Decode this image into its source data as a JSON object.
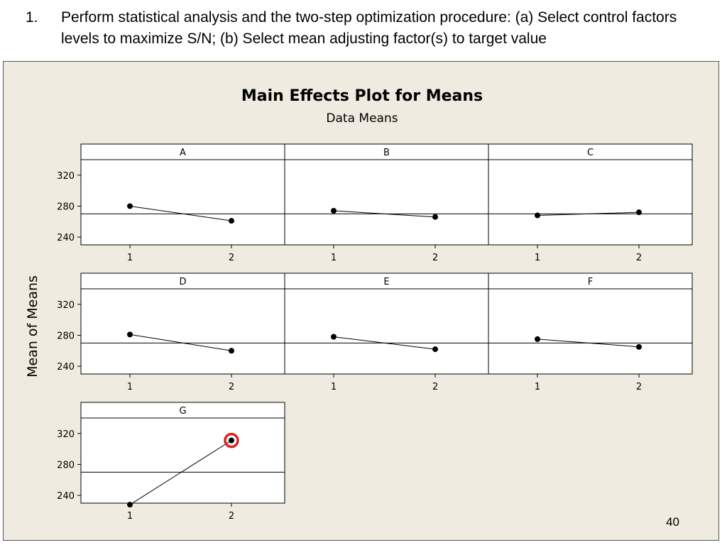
{
  "slide": {
    "step_number": "1.",
    "step_text": "Perform statistical analysis and the two-step optimization procedure: (a) Select control factors levels to maximize S/N; (b) Select mean adjusting factor(s) to target value",
    "page_number": "40"
  },
  "colors": {
    "panel_bg": "#efebe0",
    "plot_bg": "#ffffff",
    "highlight": "#e02020",
    "line": "#000000"
  },
  "chart_data": {
    "type": "line",
    "title": "Main Effects Plot for Means",
    "subtitle": "Data Means",
    "ylabel": "Mean of Means",
    "ylim": [
      230,
      340
    ],
    "yticks": [
      240,
      280,
      320
    ],
    "grand_mean": 270,
    "x_levels": [
      "1",
      "2"
    ],
    "factors": [
      {
        "name": "A",
        "values": [
          280,
          261
        ]
      },
      {
        "name": "B",
        "values": [
          274,
          266
        ]
      },
      {
        "name": "C",
        "values": [
          268,
          272
        ]
      },
      {
        "name": "D",
        "values": [
          281,
          260
        ]
      },
      {
        "name": "E",
        "values": [
          278,
          262
        ]
      },
      {
        "name": "F",
        "values": [
          275,
          265
        ]
      },
      {
        "name": "G",
        "values": [
          228,
          311
        ]
      }
    ],
    "highlight": {
      "factor": "G",
      "level": "2"
    }
  }
}
